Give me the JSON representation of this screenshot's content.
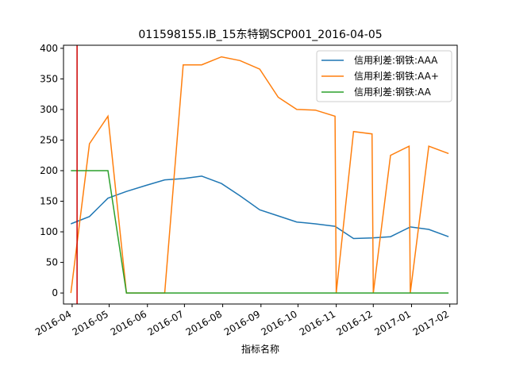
{
  "chart_data": {
    "type": "line",
    "title": "011598155.IB_15东特钢SCP001_2016-04-05",
    "xlabel": "指标名称",
    "ylabel": "",
    "x_ticks": [
      "2016-04",
      "2016-05",
      "2016-06",
      "2016-07",
      "2016-08",
      "2016-09",
      "2016-10",
      "2016-11",
      "2016-12",
      "2017-01",
      "2017-02"
    ],
    "y_ticks": [
      0,
      50,
      100,
      150,
      200,
      250,
      300,
      350,
      400
    ],
    "ylim": [
      -18,
      405
    ],
    "xlim": [
      "2016-03-25",
      "2017-02-07"
    ],
    "grid": false,
    "legend_position": "upper right",
    "vline": {
      "x": "2016-04-05",
      "color": "#cc0000"
    },
    "series": [
      {
        "name": "信用利差:钢铁:AAA",
        "color": "#1f77b4",
        "x": [
          "2016-03-31",
          "2016-04-15",
          "2016-04-30",
          "2016-05-15",
          "2016-05-31",
          "2016-06-15",
          "2016-06-30",
          "2016-07-15",
          "2016-07-31",
          "2016-08-15",
          "2016-08-31",
          "2016-09-15",
          "2016-09-30",
          "2016-10-15",
          "2016-10-31",
          "2016-11-15",
          "2016-11-30",
          "2016-12-15",
          "2016-12-31",
          "2017-01-15",
          "2017-01-31"
        ],
        "values": [
          113,
          125,
          155,
          166,
          176,
          185,
          187,
          191,
          179,
          159,
          136,
          126,
          116,
          113,
          109,
          89,
          90,
          92,
          108,
          104,
          92
        ]
      },
      {
        "name": "信用利差:钢铁:AA+",
        "color": "#ff7f0e",
        "x": [
          "2016-03-31",
          "2016-04-15",
          "2016-04-30",
          "2016-05-15",
          "2016-05-31",
          "2016-06-15",
          "2016-06-30",
          "2016-07-15",
          "2016-07-31",
          "2016-08-15",
          "2016-08-31",
          "2016-09-15",
          "2016-09-30",
          "2016-10-15",
          "2016-10-31",
          "2016-11-01",
          "2016-11-15",
          "2016-11-30",
          "2016-12-01",
          "2016-12-15",
          "2016-12-30",
          "2016-12-31",
          "2017-01-15",
          "2017-01-31"
        ],
        "values": [
          0,
          244,
          289,
          0,
          0,
          0,
          373,
          373,
          386,
          380,
          366,
          320,
          300,
          299,
          289,
          0,
          264,
          260,
          0,
          225,
          240,
          0,
          240,
          228
        ]
      },
      {
        "name": "信用利差:钢铁:AA",
        "color": "#2ca02c",
        "x": [
          "2016-03-31",
          "2016-04-15",
          "2016-04-30",
          "2016-05-15",
          "2017-01-31"
        ],
        "values": [
          200,
          200,
          200,
          0,
          0
        ]
      }
    ]
  }
}
